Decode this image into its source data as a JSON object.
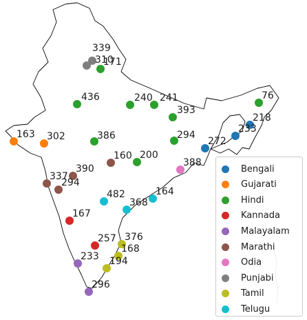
{
  "chart_data": {
    "type": "scatter",
    "series": [
      {
        "name": "Bengali",
        "color": "#1f77b4",
        "values": [
          218,
          233,
          272
        ]
      },
      {
        "name": "Gujarati",
        "color": "#ff7f0e",
        "values": [
          163,
          302
        ]
      },
      {
        "name": "Hindi",
        "color": "#2ca02c",
        "values": [
          171,
          436,
          240,
          241,
          393,
          76,
          386,
          294,
          200
        ]
      },
      {
        "name": "Kannada",
        "color": "#d62728",
        "values": [
          167,
          257
        ]
      },
      {
        "name": "Malayalam",
        "color": "#9467bd",
        "values": [
          233,
          296
        ]
      },
      {
        "name": "Marathi",
        "color": "#8c564b",
        "values": [
          390,
          337,
          294,
          160
        ]
      },
      {
        "name": "Odia",
        "color": "#e377c2",
        "values": [
          388
        ]
      },
      {
        "name": "Punjabi",
        "color": "#7f7f7f",
        "values": [
          339,
          310
        ]
      },
      {
        "name": "Tamil",
        "color": "#bcbd22",
        "values": [
          376,
          168,
          194
        ]
      },
      {
        "name": "Telugu",
        "color": "#17becf",
        "values": [
          482,
          368,
          164
        ]
      }
    ]
  }
}
